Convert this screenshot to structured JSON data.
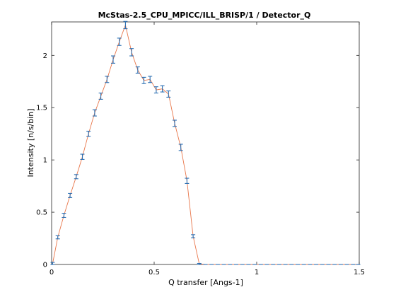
{
  "chart_data": {
    "type": "line",
    "title": "McStas-2.5_CPU_MPICC/ILL_BRISP/1 / Detector_Q",
    "xlabel": "Q transfer [Angs-1]",
    "ylabel": "Intensity [n/s/bin]",
    "xlim": [
      0,
      1.5
    ],
    "ylim": [
      0,
      2.32
    ],
    "xticks": [
      0,
      0.5,
      1,
      1.5
    ],
    "xtick_labels": [
      "0",
      "0.5",
      "1",
      "1.5"
    ],
    "yticks": [
      0,
      0.5,
      1,
      1.5,
      2
    ],
    "ytick_labels": [
      "0",
      "0.5",
      "1",
      "1.5",
      "2"
    ],
    "grid": false,
    "legend": "none",
    "line_color": "#e8764a",
    "errorbar_color": "#2b6fb3",
    "series": [
      {
        "x": [
          0.005,
          0.03,
          0.06,
          0.09,
          0.12,
          0.15,
          0.18,
          0.21,
          0.24,
          0.27,
          0.3,
          0.33,
          0.36,
          0.39,
          0.42,
          0.45,
          0.48,
          0.51,
          0.54,
          0.57,
          0.6,
          0.63,
          0.66,
          0.69,
          0.72,
          0.75,
          0.78,
          0.81,
          0.84,
          0.87,
          0.9,
          0.93,
          0.96,
          0.99,
          1.02,
          1.05,
          1.08,
          1.11,
          1.14,
          1.17,
          1.2,
          1.23,
          1.26,
          1.29,
          1.32,
          1.35,
          1.38,
          1.41,
          1.44,
          1.47,
          1.495
        ],
        "y": [
          0.01,
          0.26,
          0.47,
          0.66,
          0.84,
          1.03,
          1.25,
          1.45,
          1.61,
          1.77,
          1.96,
          2.13,
          2.29,
          2.03,
          1.86,
          1.76,
          1.77,
          1.67,
          1.68,
          1.63,
          1.35,
          1.12,
          0.8,
          0.27,
          0.005,
          0,
          0,
          0,
          0,
          0,
          0,
          0,
          0,
          0,
          0,
          0,
          0,
          0,
          0,
          0,
          0,
          0,
          0,
          0,
          0,
          0,
          0,
          0,
          0,
          0,
          0
        ],
        "err": [
          0.01,
          0.015,
          0.02,
          0.02,
          0.02,
          0.025,
          0.025,
          0.03,
          0.03,
          0.03,
          0.035,
          0.035,
          0.035,
          0.035,
          0.03,
          0.03,
          0.03,
          0.03,
          0.03,
          0.03,
          0.03,
          0.03,
          0.025,
          0.015,
          0.005,
          0,
          0,
          0,
          0,
          0,
          0,
          0,
          0,
          0,
          0,
          0,
          0,
          0,
          0,
          0,
          0,
          0,
          0,
          0,
          0,
          0,
          0,
          0,
          0,
          0,
          0
        ]
      }
    ]
  }
}
